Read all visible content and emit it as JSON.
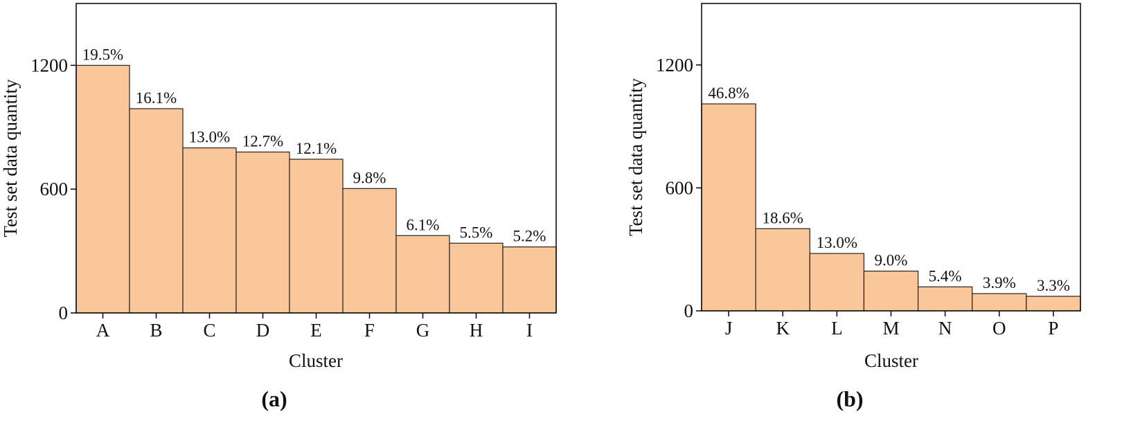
{
  "chart_data": [
    {
      "type": "bar",
      "panel_label": "(a)",
      "xlabel": "Cluster",
      "ylabel": "Test set data quantity",
      "categories": [
        "A",
        "B",
        "C",
        "D",
        "E",
        "F",
        "G",
        "H",
        "I"
      ],
      "values": [
        1200,
        990,
        800,
        780,
        745,
        603,
        375,
        338,
        320
      ],
      "bar_labels": [
        "19.5%",
        "16.1%",
        "13.0%",
        "12.7%",
        "12.1%",
        "9.8%",
        "6.1%",
        "5.5%",
        "5.2%"
      ],
      "color": "#f9c79a",
      "ylim": [
        0,
        1500
      ],
      "yticks": [
        0,
        600,
        1200
      ]
    },
    {
      "type": "bar",
      "panel_label": "(b)",
      "xlabel": "Cluster",
      "ylabel": "Test set data quantity",
      "categories": [
        "J",
        "K",
        "L",
        "M",
        "N",
        "O",
        "P"
      ],
      "values": [
        1010,
        401,
        280,
        194,
        117,
        84,
        71
      ],
      "bar_labels": [
        "46.8%",
        "18.6%",
        "13.0%",
        "9.0%",
        "5.4%",
        "3.9%",
        "3.3%"
      ],
      "color": "#f9c79a",
      "ylim": [
        0,
        1500
      ],
      "yticks": [
        0,
        600,
        1200
      ]
    }
  ]
}
